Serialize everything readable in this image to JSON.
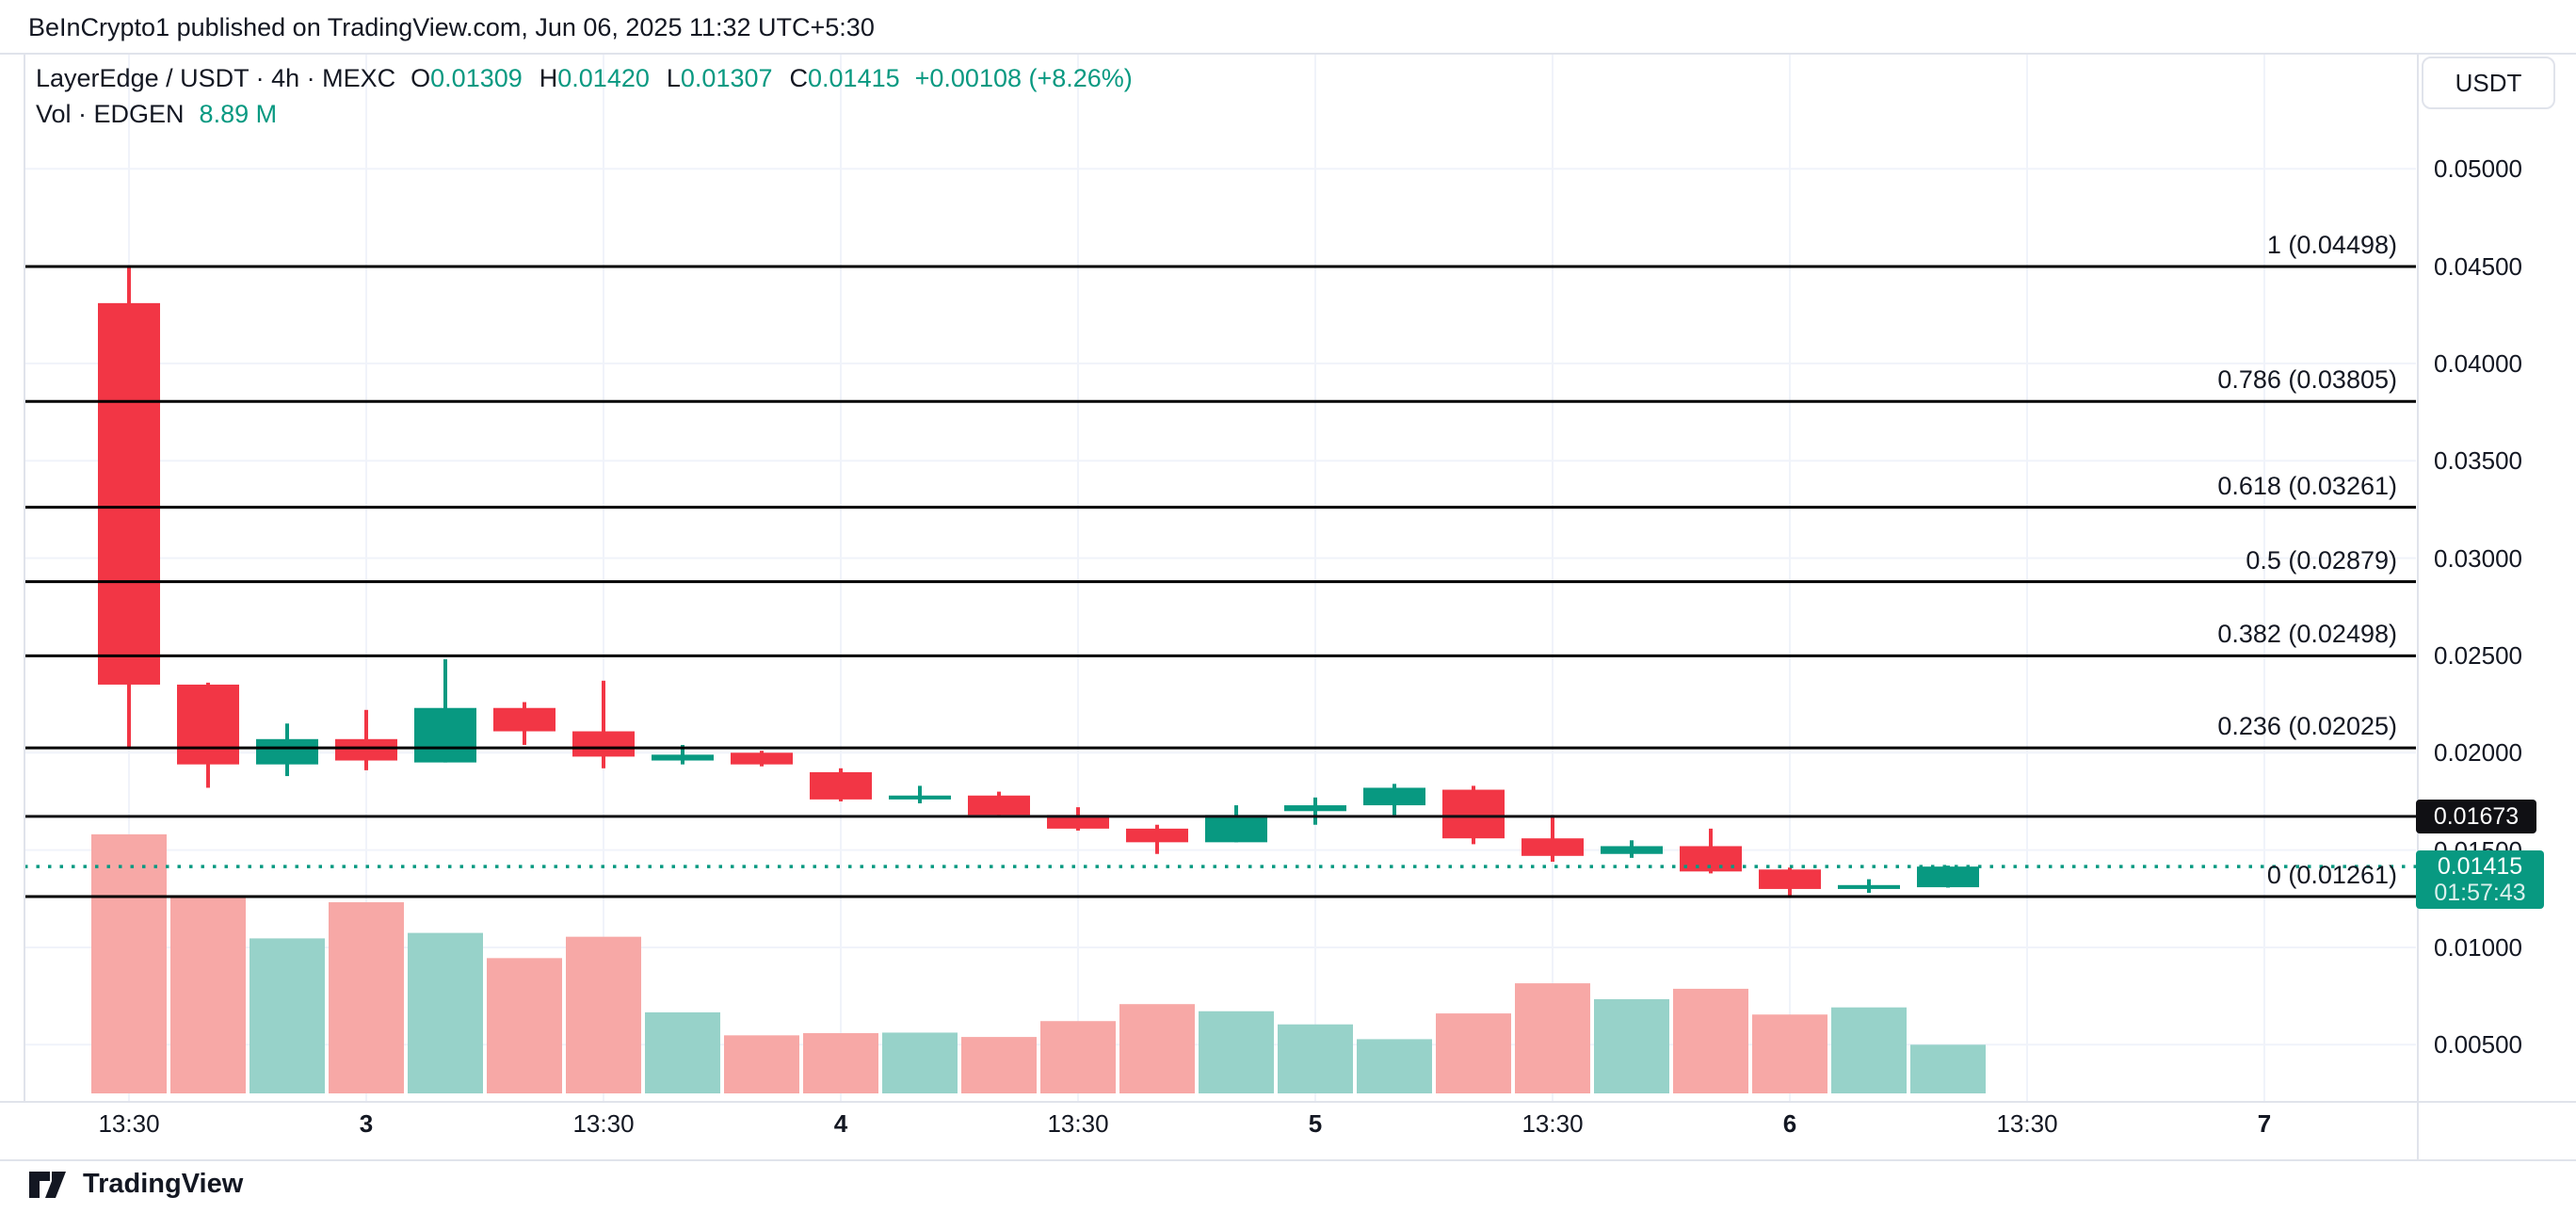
{
  "header": {
    "attribution": "BeInCrypto1 published on TradingView.com, Jun 06, 2025 11:32 UTC+5:30"
  },
  "legend": {
    "symbol": "LayerEdge / USDT · 4h · MEXC",
    "ohlc": [
      {
        "k": "O",
        "v": "0.01309"
      },
      {
        "k": "H",
        "v": "0.01420"
      },
      {
        "k": "L",
        "v": "0.01307"
      },
      {
        "k": "C",
        "v": "0.01415"
      }
    ],
    "change": "+0.00108 (+8.26%)",
    "volume_label": "Vol · EDGEN",
    "volume_value": "8.89 M"
  },
  "price_axis": {
    "currency": "USDT",
    "ticks": [
      {
        "label": "0.05000",
        "price": 0.05
      },
      {
        "label": "0.04500",
        "price": 0.045
      },
      {
        "label": "0.04000",
        "price": 0.04
      },
      {
        "label": "0.03500",
        "price": 0.035
      },
      {
        "label": "0.03000",
        "price": 0.03
      },
      {
        "label": "0.02500",
        "price": 0.025
      },
      {
        "label": "0.02000",
        "price": 0.02
      },
      {
        "label": "0.01500",
        "price": 0.015
      },
      {
        "label": "0.01000",
        "price": 0.01
      },
      {
        "label": "0.00500",
        "price": 0.005
      }
    ],
    "black_label": "0.01673",
    "last_label": {
      "price": "0.01415",
      "countdown": "01:57:43"
    }
  },
  "time_axis": {
    "ticks": [
      {
        "label": "13:30",
        "bar": 0,
        "bold": false
      },
      {
        "label": "3",
        "bar": 3,
        "bold": true
      },
      {
        "label": "13:30",
        "bar": 6,
        "bold": false
      },
      {
        "label": "4",
        "bar": 9,
        "bold": true
      },
      {
        "label": "13:30",
        "bar": 12,
        "bold": false
      },
      {
        "label": "5",
        "bar": 15,
        "bold": true
      },
      {
        "label": "13:30",
        "bar": 18,
        "bold": false
      },
      {
        "label": "6",
        "bar": 21,
        "bold": true
      },
      {
        "label": "13:30",
        "bar": 24,
        "bold": false
      },
      {
        "label": "7",
        "bar": 27,
        "bold": true
      }
    ]
  },
  "footer": {
    "brand": "TradingView"
  },
  "colors": {
    "up": "#089981",
    "down": "#F23645",
    "vol_up": "#97D2C9",
    "vol_down": "#F7A8A6",
    "grid": "#F0F3FA",
    "border": "#E0E3EB",
    "fib_line": "#000000",
    "price_line": "#089981",
    "text": "#131722"
  },
  "chart_data": {
    "type": "candlestick",
    "title": "LayerEdge / USDT · 4h · MEXC",
    "interval": "4h",
    "exchange": "MEXC",
    "volume_unit": "M EDGEN",
    "ylim": [
      0.0025,
      0.0525
    ],
    "grid": true,
    "last_price": 0.01415,
    "black_line_price": 0.01673,
    "fib_levels": [
      {
        "label": "1 (0.04498)",
        "price": 0.04498
      },
      {
        "label": "0.786 (0.03805)",
        "price": 0.03805
      },
      {
        "label": "0.618 (0.03261)",
        "price": 0.03261
      },
      {
        "label": "0.5 (0.02879)",
        "price": 0.02879
      },
      {
        "label": "0.382 (0.02498)",
        "price": 0.02498
      },
      {
        "label": "0.236 (0.02025)",
        "price": 0.02025
      },
      {
        "label": "0 (0.01261)",
        "price": 0.01261
      }
    ],
    "candles": [
      {
        "o": 0.0431,
        "h": 0.04498,
        "l": 0.0202,
        "c": 0.0235,
        "v": 47.3
      },
      {
        "o": 0.0235,
        "h": 0.0236,
        "l": 0.0182,
        "c": 0.0194,
        "v": 36.1
      },
      {
        "o": 0.0194,
        "h": 0.0215,
        "l": 0.0188,
        "c": 0.0207,
        "v": 28.3
      },
      {
        "o": 0.0207,
        "h": 0.0222,
        "l": 0.0191,
        "c": 0.0196,
        "v": 34.9
      },
      {
        "o": 0.0195,
        "h": 0.0248,
        "l": 0.0195,
        "c": 0.0223,
        "v": 29.3
      },
      {
        "o": 0.0223,
        "h": 0.0226,
        "l": 0.0204,
        "c": 0.0211,
        "v": 24.7
      },
      {
        "o": 0.0211,
        "h": 0.0237,
        "l": 0.0192,
        "c": 0.0198,
        "v": 28.6
      },
      {
        "o": 0.0196,
        "h": 0.0204,
        "l": 0.0194,
        "c": 0.0199,
        "v": 14.8
      },
      {
        "o": 0.02,
        "h": 0.0201,
        "l": 0.0193,
        "c": 0.0194,
        "v": 10.6
      },
      {
        "o": 0.019,
        "h": 0.0192,
        "l": 0.0175,
        "c": 0.0176,
        "v": 11.0
      },
      {
        "o": 0.0176,
        "h": 0.0183,
        "l": 0.0174,
        "c": 0.0178,
        "v": 11.1
      },
      {
        "o": 0.0178,
        "h": 0.018,
        "l": 0.0167,
        "c": 0.0168,
        "v": 10.3
      },
      {
        "o": 0.0168,
        "h": 0.0172,
        "l": 0.016,
        "c": 0.0161,
        "v": 13.2
      },
      {
        "o": 0.0161,
        "h": 0.0163,
        "l": 0.0148,
        "c": 0.0154,
        "v": 16.3
      },
      {
        "o": 0.0154,
        "h": 0.0173,
        "l": 0.0154,
        "c": 0.0168,
        "v": 15.0
      },
      {
        "o": 0.017,
        "h": 0.0177,
        "l": 0.0163,
        "c": 0.0173,
        "v": 12.6
      },
      {
        "o": 0.0173,
        "h": 0.0184,
        "l": 0.0168,
        "c": 0.0182,
        "v": 9.9
      },
      {
        "o": 0.0181,
        "h": 0.0183,
        "l": 0.0153,
        "c": 0.0156,
        "v": 14.6
      },
      {
        "o": 0.0156,
        "h": 0.0168,
        "l": 0.0144,
        "c": 0.0147,
        "v": 20.1
      },
      {
        "o": 0.0148,
        "h": 0.0155,
        "l": 0.0146,
        "c": 0.0152,
        "v": 17.2
      },
      {
        "o": 0.0152,
        "h": 0.0161,
        "l": 0.0138,
        "c": 0.0139,
        "v": 19.1
      },
      {
        "o": 0.014,
        "h": 0.0141,
        "l": 0.01261,
        "c": 0.013,
        "v": 14.4
      },
      {
        "o": 0.013,
        "h": 0.0135,
        "l": 0.0128,
        "c": 0.0132,
        "v": 15.7
      },
      {
        "o": 0.01309,
        "h": 0.0142,
        "l": 0.01307,
        "c": 0.01415,
        "v": 8.89
      }
    ]
  }
}
